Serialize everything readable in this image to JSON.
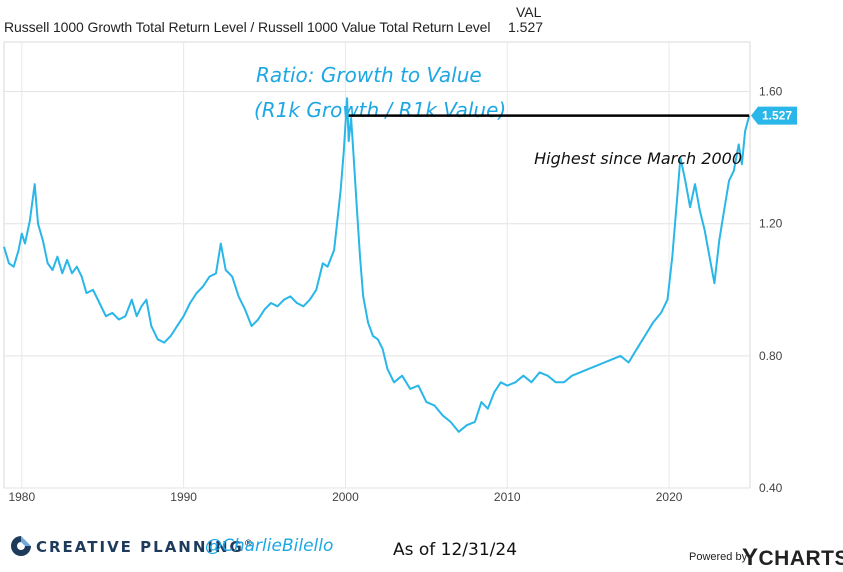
{
  "legend": {
    "series_name": "Russell 1000 Growth Total Return Level / Russell 1000 Value Total Return Level",
    "val_header": "VAL",
    "val_value": "1.527"
  },
  "chart_data": {
    "type": "line",
    "title": "Ratio: Growth to Value",
    "subtitle": "(R1k Growth / R1k Value)",
    "annotation": "Highest since March 2000",
    "current_value_label": "1.527",
    "ylim": [
      0.4,
      1.75
    ],
    "xlim": [
      1978.9,
      2025.0
    ],
    "y_ticks": [
      {
        "value": 1.6,
        "label": "1.60"
      },
      {
        "value": 1.2,
        "label": "1.20"
      },
      {
        "value": 0.8,
        "label": "0.80"
      },
      {
        "value": 0.4,
        "label": "0.40"
      }
    ],
    "x_ticks": [
      {
        "value": 1980,
        "label": "1980"
      },
      {
        "value": 1990,
        "label": "1990"
      },
      {
        "value": 2000,
        "label": "2000"
      },
      {
        "value": 2010,
        "label": "2010"
      },
      {
        "value": 2020,
        "label": "2020"
      }
    ],
    "reference_line": {
      "from_x": 2000.2,
      "to_x": 2024.95,
      "y": 1.527
    },
    "series": [
      {
        "color": "#29b6e8",
        "points": [
          [
            1978.9,
            1.13
          ],
          [
            1979.2,
            1.08
          ],
          [
            1979.5,
            1.07
          ],
          [
            1979.8,
            1.12
          ],
          [
            1980.0,
            1.17
          ],
          [
            1980.2,
            1.14
          ],
          [
            1980.5,
            1.21
          ],
          [
            1980.8,
            1.32
          ],
          [
            1981.0,
            1.2
          ],
          [
            1981.3,
            1.15
          ],
          [
            1981.6,
            1.08
          ],
          [
            1981.9,
            1.06
          ],
          [
            1982.2,
            1.1
          ],
          [
            1982.5,
            1.05
          ],
          [
            1982.8,
            1.09
          ],
          [
            1983.1,
            1.05
          ],
          [
            1983.4,
            1.07
          ],
          [
            1983.7,
            1.04
          ],
          [
            1984.0,
            0.99
          ],
          [
            1984.4,
            1.0
          ],
          [
            1984.8,
            0.96
          ],
          [
            1985.2,
            0.92
          ],
          [
            1985.6,
            0.93
          ],
          [
            1986.0,
            0.91
          ],
          [
            1986.4,
            0.92
          ],
          [
            1986.8,
            0.97
          ],
          [
            1987.1,
            0.92
          ],
          [
            1987.4,
            0.95
          ],
          [
            1987.7,
            0.97
          ],
          [
            1988.0,
            0.89
          ],
          [
            1988.4,
            0.85
          ],
          [
            1988.8,
            0.84
          ],
          [
            1989.2,
            0.86
          ],
          [
            1989.6,
            0.89
          ],
          [
            1990.0,
            0.92
          ],
          [
            1990.4,
            0.96
          ],
          [
            1990.8,
            0.99
          ],
          [
            1991.2,
            1.01
          ],
          [
            1991.6,
            1.04
          ],
          [
            1992.0,
            1.05
          ],
          [
            1992.3,
            1.14
          ],
          [
            1992.6,
            1.06
          ],
          [
            1993.0,
            1.04
          ],
          [
            1993.4,
            0.98
          ],
          [
            1993.8,
            0.94
          ],
          [
            1994.2,
            0.89
          ],
          [
            1994.6,
            0.91
          ],
          [
            1995.0,
            0.94
          ],
          [
            1995.4,
            0.96
          ],
          [
            1995.8,
            0.95
          ],
          [
            1996.2,
            0.97
          ],
          [
            1996.6,
            0.98
          ],
          [
            1997.0,
            0.96
          ],
          [
            1997.4,
            0.95
          ],
          [
            1997.8,
            0.97
          ],
          [
            1998.2,
            1.0
          ],
          [
            1998.6,
            1.08
          ],
          [
            1998.9,
            1.07
          ],
          [
            1999.3,
            1.12
          ],
          [
            1999.7,
            1.3
          ],
          [
            1999.9,
            1.42
          ],
          [
            2000.1,
            1.58
          ],
          [
            2000.2,
            1.45
          ],
          [
            2000.35,
            1.52
          ],
          [
            2000.5,
            1.41
          ],
          [
            2000.7,
            1.25
          ],
          [
            2000.9,
            1.1
          ],
          [
            2001.1,
            0.98
          ],
          [
            2001.4,
            0.9
          ],
          [
            2001.7,
            0.86
          ],
          [
            2002.0,
            0.85
          ],
          [
            2002.3,
            0.82
          ],
          [
            2002.6,
            0.76
          ],
          [
            2003.0,
            0.72
          ],
          [
            2003.5,
            0.74
          ],
          [
            2004.0,
            0.7
          ],
          [
            2004.5,
            0.71
          ],
          [
            2005.0,
            0.66
          ],
          [
            2005.5,
            0.65
          ],
          [
            2006.0,
            0.62
          ],
          [
            2006.5,
            0.6
          ],
          [
            2007.0,
            0.57
          ],
          [
            2007.5,
            0.59
          ],
          [
            2008.0,
            0.6
          ],
          [
            2008.4,
            0.66
          ],
          [
            2008.8,
            0.64
          ],
          [
            2009.2,
            0.69
          ],
          [
            2009.6,
            0.72
          ],
          [
            2010.0,
            0.71
          ],
          [
            2010.5,
            0.72
          ],
          [
            2011.0,
            0.74
          ],
          [
            2011.5,
            0.72
          ],
          [
            2012.0,
            0.75
          ],
          [
            2012.5,
            0.74
          ],
          [
            2013.0,
            0.72
          ],
          [
            2013.5,
            0.72
          ],
          [
            2014.0,
            0.74
          ],
          [
            2014.5,
            0.75
          ],
          [
            2015.0,
            0.76
          ],
          [
            2015.5,
            0.77
          ],
          [
            2016.0,
            0.78
          ],
          [
            2016.5,
            0.79
          ],
          [
            2017.0,
            0.8
          ],
          [
            2017.5,
            0.78
          ],
          [
            2018.0,
            0.82
          ],
          [
            2018.5,
            0.86
          ],
          [
            2019.0,
            0.9
          ],
          [
            2019.5,
            0.93
          ],
          [
            2019.9,
            0.97
          ],
          [
            2020.2,
            1.1
          ],
          [
            2020.5,
            1.28
          ],
          [
            2020.7,
            1.4
          ],
          [
            2021.0,
            1.33
          ],
          [
            2021.3,
            1.25
          ],
          [
            2021.6,
            1.32
          ],
          [
            2021.9,
            1.24
          ],
          [
            2022.2,
            1.18
          ],
          [
            2022.5,
            1.1
          ],
          [
            2022.8,
            1.02
          ],
          [
            2023.1,
            1.15
          ],
          [
            2023.4,
            1.24
          ],
          [
            2023.7,
            1.33
          ],
          [
            2024.0,
            1.36
          ],
          [
            2024.3,
            1.44
          ],
          [
            2024.5,
            1.38
          ],
          [
            2024.7,
            1.48
          ],
          [
            2024.95,
            1.527
          ]
        ]
      }
    ]
  },
  "footer": {
    "brand": "CREATIVE PLANNING",
    "trademark": "®",
    "handle": "@CharlieBilello",
    "as_of": "As of 12/31/24",
    "powered_by": "Powered by",
    "provider_y": "Y",
    "provider_rest": "CHARTS"
  }
}
